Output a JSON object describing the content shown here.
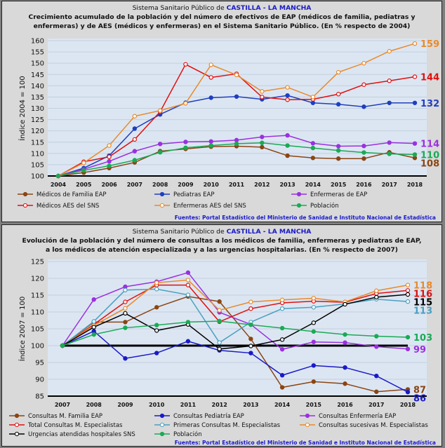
{
  "chart_data": [
    {
      "type": "line",
      "title_prefix": "Sistema Sanitario Público de ",
      "title_region": "CASTILLA - LA MANCHA",
      "title_line2": "Crecimiento acumulado de la población y del número de efectivos de EAP (médicos de familia, pediatras y",
      "title_line3": "enfermeras) y de AES (médicos y enfermeras) en el Sistema Sanitario Público. (En % respecto de 2004)",
      "ylabel": "Índice 2004 = 100",
      "ylim": [
        100,
        160
      ],
      "yticks": [
        100,
        105,
        110,
        115,
        120,
        125,
        130,
        135,
        140,
        145,
        150,
        155,
        160
      ],
      "x": [
        "2004",
        "2005",
        "2006",
        "2007",
        "2008",
        "2009",
        "2010",
        "2011",
        "2012",
        "2013",
        "2014",
        "2015",
        "2016",
        "2017",
        "2018"
      ],
      "grid": true,
      "legend": "bottom",
      "source": "Fuentes:  Portal Estadístico del Ministerio de Sanidad e Instituto Nacional de Estadística",
      "series": [
        {
          "name": "Médicos de Familia EAP",
          "color": "#8b4513",
          "marker": "filled",
          "end_label": "108",
          "values": [
            100,
            101.5,
            103.5,
            106,
            111,
            112,
            113,
            113.2,
            112.8,
            109,
            108,
            107.7,
            107.7,
            110.5,
            108
          ]
        },
        {
          "name": "Pediatras EAP",
          "color": "#1f3fbf",
          "marker": "filled",
          "end_label": "132",
          "values": [
            100,
            103.5,
            109,
            121,
            127.3,
            132.5,
            134.7,
            135.2,
            134,
            135.7,
            132.4,
            131.8,
            130.7,
            132.4,
            132.4
          ]
        },
        {
          "name": "Enfermeras de EAP",
          "color": "#9b30e0",
          "marker": "filled",
          "end_label": "114",
          "values": [
            100,
            103,
            106.5,
            111,
            114.2,
            115.1,
            115.3,
            115.9,
            117.3,
            118,
            114.5,
            113.2,
            113.3,
            114.8,
            114.4
          ]
        },
        {
          "name": "Médicos AES del SNS",
          "color": "#e01010",
          "marker": "open",
          "end_label": "144",
          "values": [
            100,
            106.3,
            108.5,
            116.2,
            128.5,
            149.5,
            143.7,
            145.3,
            135,
            133.8,
            134,
            136.3,
            140.5,
            142.2,
            144
          ]
        },
        {
          "name": "Enfermeras AES del SNS",
          "color": "#e88a2a",
          "marker": "open",
          "end_label": "159",
          "values": [
            100,
            105.8,
            113.5,
            126.5,
            129,
            132.2,
            149.3,
            144.8,
            137.5,
            139.3,
            135,
            146,
            150,
            155.3,
            158.7
          ]
        },
        {
          "name": "Población",
          "color": "#1aaa55",
          "marker": "filled",
          "end_label": "110",
          "values": [
            100,
            102.5,
            104.5,
            107,
            110.5,
            112.5,
            113.5,
            114.3,
            114.7,
            113.5,
            112.4,
            111.3,
            110.4,
            109.8,
            109.5
          ]
        }
      ]
    },
    {
      "type": "line",
      "title_prefix": "Sistema Sanitario Público de ",
      "title_region": "CASTILLA - LA MANCHA",
      "title_line2": "Evolución de la población y del número de consultas a los médicos de familia, enfermeras y pediatras de EAP,",
      "title_line3": "a los médicos de atención especializada y a las urgencias hospitalarias. (En % respecto de 2007)",
      "ylabel": "Índice 2007 = 100",
      "ylim": [
        85,
        125
      ],
      "yticks": [
        85,
        90,
        95,
        100,
        105,
        110,
        115,
        120,
        125
      ],
      "x": [
        "2007",
        "2008",
        "2009",
        "2010",
        "2011",
        "2012",
        "2013",
        "2014",
        "2015",
        "2016",
        "2017",
        "2018"
      ],
      "grid": true,
      "legend": "bottom",
      "reference_line": 100,
      "source": "Fuentes: Portal Estadístico del Ministerio de Sanidad e Instituto Nacional de Estadística",
      "series": [
        {
          "name": "Consultas M. Familia EAP",
          "color": "#8b4513",
          "marker": "filled",
          "end_label": "87",
          "values": [
            100,
            107,
            107,
            111.4,
            114.6,
            113.1,
            102,
            87.6,
            89.3,
            88.7,
            86.3,
            87
          ]
        },
        {
          "name": "Consultas Pediatría EAP",
          "color": "#1a1ac8",
          "marker": "filled",
          "end_label": "86",
          "values": [
            100,
            104.3,
            96.2,
            97.8,
            101.3,
            98.6,
            97.8,
            91.2,
            94.1,
            93.5,
            91,
            86.2
          ]
        },
        {
          "name": "Consultas Enfermería EAP",
          "color": "#9b30e0",
          "marker": "filled",
          "end_label": "99",
          "values": [
            100,
            113.7,
            117.5,
            119,
            121.7,
            109.9,
            106.3,
            98.9,
            101.1,
            100.9,
            99.7,
            99
          ]
        },
        {
          "name": "Total Consultas M. Especialistas",
          "color": "#e01010",
          "marker": "open",
          "end_label": "116",
          "values": [
            100,
            106.3,
            113,
            118,
            118,
            107.1,
            111,
            112.7,
            113.2,
            112.9,
            115.5,
            116.4
          ]
        },
        {
          "name": "Primeras Consultas M. Especialistas",
          "color": "#4aa0c0",
          "marker": "open",
          "end_label": "113",
          "values": [
            100,
            107.2,
            116.5,
            116.8,
            115.1,
            100.9,
            107,
            111,
            111.4,
            112.4,
            113.8,
            113.1
          ]
        },
        {
          "name": "Consultas sucesivas M. Especialistas",
          "color": "#e88a2a",
          "marker": "open",
          "end_label": "118",
          "values": [
            100,
            106,
            111.1,
            118.7,
            119.5,
            110.5,
            113,
            113.6,
            114.1,
            113,
            116.3,
            118
          ]
        },
        {
          "name": "Urgencias atendidas hospitales SNS",
          "color": "#000000",
          "marker": "open",
          "end_label": "115",
          "values": [
            100,
            105.5,
            109.6,
            104.5,
            106.3,
            99,
            99.9,
            101.8,
            106.8,
            112.3,
            114.4,
            115.2
          ]
        },
        {
          "name": "Población",
          "color": "#1aaa55",
          "marker": "filled",
          "end_label": "103",
          "values": [
            100,
            103.3,
            105.3,
            106.1,
            107,
            107.3,
            106.2,
            105.2,
            104.2,
            103.3,
            102.8,
            102.5
          ]
        }
      ]
    }
  ]
}
